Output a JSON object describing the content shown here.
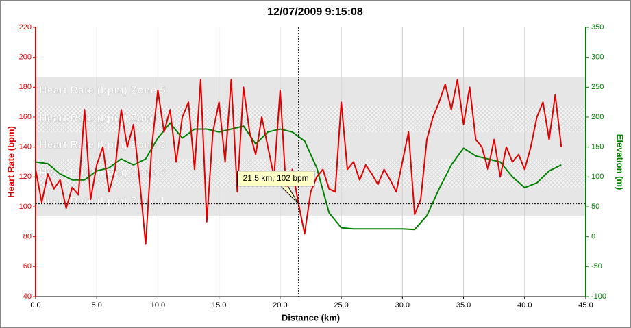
{
  "chart_data": {
    "type": "line",
    "title": "12/07/2009 9:15:08",
    "xlabel": "Distance (km)",
    "ylabel": "Heart Rate (bpm)",
    "y2label": "Elevation (m)",
    "xlim": [
      0,
      45
    ],
    "xticks": [
      {
        "value": 0,
        "label": "0.0"
      },
      {
        "value": 5,
        "label": "5.0"
      },
      {
        "value": 10,
        "label": "10.0"
      },
      {
        "value": 15,
        "label": "15.0"
      },
      {
        "value": 20,
        "label": "20.0"
      },
      {
        "value": 25,
        "label": "25.0"
      },
      {
        "value": 30,
        "label": "30.0"
      },
      {
        "value": 35,
        "label": "35.0"
      },
      {
        "value": 40,
        "label": "40.0"
      },
      {
        "value": 45,
        "label": "45.0"
      }
    ],
    "ylim": [
      40,
      220
    ],
    "yticks": [
      40,
      60,
      80,
      100,
      120,
      140,
      160,
      180,
      200,
      220
    ],
    "y2lim": [
      -100,
      350
    ],
    "y2ticks": [
      -100,
      -50,
      0,
      50,
      100,
      150,
      200,
      250,
      300,
      350
    ],
    "grid": true,
    "zones": [
      {
        "label": "Heart Rate (bpm) Zone 1",
        "from": 94,
        "to": 113
      },
      {
        "label": "Heart Rate (bpm) Zone 2",
        "from": 113,
        "to": 132
      },
      {
        "label": "Heart Rate (bpm) Zone 3",
        "from": 132,
        "to": 150
      },
      {
        "label": "Heart Rate (bpm) Zone 4",
        "from": 150,
        "to": 168
      },
      {
        "label": "Heart Rate (bpm) Zone 5",
        "from": 168,
        "to": 187
      }
    ],
    "series": [
      {
        "name": "Heart Rate",
        "color": "#e00000",
        "x": [
          0,
          0.5,
          1,
          1.5,
          2,
          2.5,
          3,
          3.5,
          4,
          4.5,
          5,
          5.5,
          6,
          6.5,
          7,
          7.5,
          8,
          8.5,
          9,
          9.5,
          10,
          10.5,
          11,
          11.5,
          12,
          12.5,
          13,
          13.5,
          14,
          14.5,
          15,
          15.5,
          16,
          16.5,
          17,
          17.5,
          18,
          18.5,
          19,
          19.5,
          20,
          20.5,
          21,
          21.5,
          22,
          22.5,
          23,
          23.5,
          24,
          24.5,
          25,
          25.5,
          26,
          26.5,
          27,
          27.5,
          28,
          28.5,
          29,
          29.5,
          30,
          30.5,
          31,
          31.5,
          32,
          32.5,
          33,
          33.5,
          34,
          34.5,
          35,
          35.5,
          36,
          36.5,
          37,
          37.5,
          38,
          38.5,
          39,
          39.5,
          40,
          40.5,
          41,
          41.5,
          42,
          42.5,
          43
        ],
        "values": [
          125,
          103,
          122,
          112,
          118,
          99,
          113,
          108,
          165,
          105,
          128,
          140,
          110,
          125,
          165,
          140,
          155,
          118,
          75,
          140,
          178,
          150,
          165,
          130,
          160,
          170,
          125,
          185,
          90,
          150,
          170,
          130,
          185,
          110,
          180,
          150,
          135,
          160,
          140,
          120,
          178,
          110,
          125,
          102,
          82,
          110,
          120,
          125,
          112,
          110,
          170,
          125,
          130,
          118,
          128,
          122,
          115,
          125,
          118,
          110,
          130,
          150,
          95,
          105,
          145,
          160,
          170,
          182,
          165,
          185,
          155,
          180,
          145,
          140,
          125,
          145,
          120,
          140,
          130,
          135,
          125,
          140,
          160,
          170,
          145,
          175,
          140
        ]
      },
      {
        "name": "Elevation",
        "color": "#008000",
        "axis": "y2",
        "x": [
          0,
          1,
          2,
          3,
          4,
          5,
          6,
          7,
          8,
          9,
          10,
          11,
          12,
          13,
          14,
          15,
          16,
          17,
          18,
          19,
          20,
          21,
          22,
          23,
          24,
          25,
          26,
          27,
          28,
          29,
          30,
          31,
          32,
          33,
          34,
          35,
          36,
          37,
          38,
          39,
          40,
          41,
          42,
          43
        ],
        "values": [
          125,
          122,
          105,
          95,
          95,
          110,
          115,
          130,
          120,
          130,
          165,
          190,
          165,
          180,
          180,
          175,
          180,
          185,
          155,
          175,
          180,
          175,
          160,
          115,
          40,
          15,
          13,
          13,
          13,
          13,
          13,
          12,
          35,
          80,
          120,
          148,
          135,
          130,
          125,
          100,
          82,
          90,
          110,
          120
        ]
      }
    ],
    "annotation": {
      "text": "21.5 km, 102 bpm",
      "x": 21.5,
      "y": 102
    }
  }
}
